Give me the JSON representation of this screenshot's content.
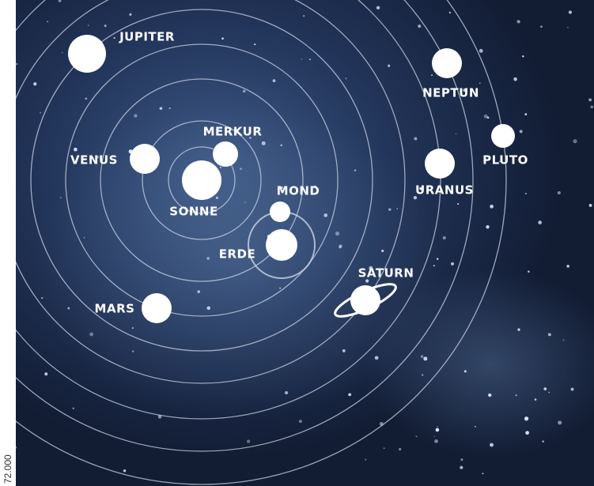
{
  "nodes": [
    {
      "label": "SONNE"
    },
    {
      "label": "MERKUR"
    },
    {
      "label": "VENUS"
    },
    {
      "label": "ERDE"
    },
    {
      "label": "MOND"
    },
    {
      "label": "MARS"
    },
    {
      "label": "JUPITER"
    },
    {
      "label": "SATURN"
    },
    {
      "label": "URANUS"
    },
    {
      "label": "NEPTUN"
    },
    {
      "label": "PLUTO"
    }
  ],
  "side_text": "72.000"
}
